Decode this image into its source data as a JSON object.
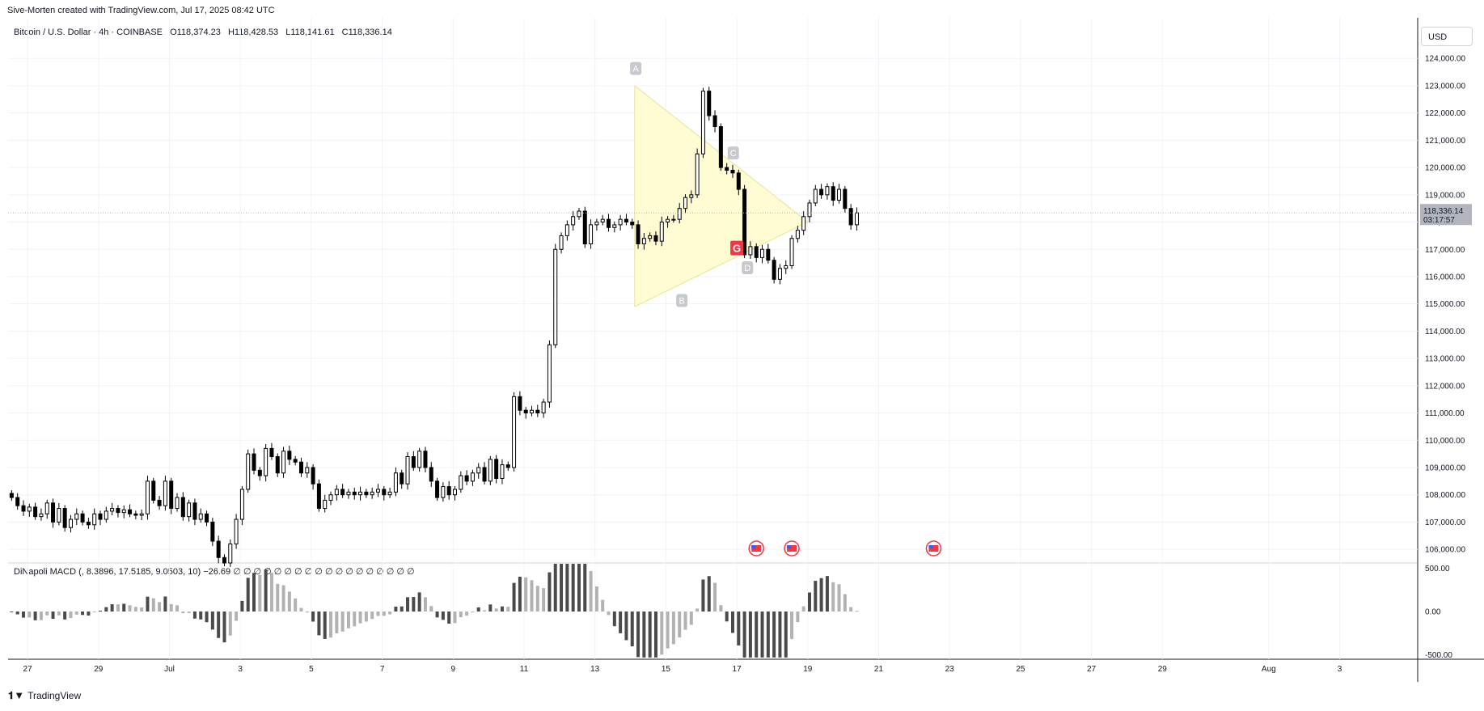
{
  "header": {
    "credit": "Sive-Morten created with TradingView.com, Jul 17, 2025 08:42 UTC"
  },
  "legend": {
    "symbol": "Bitcoin / U.S. Dollar · 4h · COINBASE",
    "open_label": "O",
    "open": "118,374.23",
    "high_label": "H",
    "high": "118,428.53",
    "low_label": "L",
    "low": "118,141.61",
    "close_label": "C",
    "close": "118,336.14"
  },
  "macd_legend": "DiNapoli MACD (, 8.3896, 17.5185, 9.0503, 10)  −26.69  ∅  ∅  ∅  ∅  ∅  ∅  ∅  ∅  ∅  ∅  ∅  ∅  ∅  ∅  ∅  ∅  ∅  ∅",
  "currency": "USD",
  "last_price_label": "118,336.14",
  "countdown": "03:17:57",
  "brand": "TradingView",
  "colors": {
    "up": "#ffffff",
    "down": "#000000",
    "macd_dark": "#4a4a4a",
    "macd_light": "#b2b2b2",
    "triangle": "#fffccc",
    "pattern_label": "#c7c9cf",
    "g_marker": "#f23645"
  },
  "chart_data": {
    "type": "candlestick",
    "timeframe": "4h",
    "price_axis": {
      "ylim": [
        105500,
        124600
      ],
      "ticks": [
        "124,000.00",
        "123,000.00",
        "122,000.00",
        "121,000.00",
        "120,000.00",
        "119,000.00",
        "118,000.00",
        "117,000.00",
        "116,000.00",
        "115,000.00",
        "114,000.00",
        "113,000.00",
        "112,000.00",
        "111,000.00",
        "110,000.00",
        "109,000.00",
        "108,000.00",
        "107,000.00",
        "106,000.00"
      ]
    },
    "time_axis": {
      "ticks": [
        {
          "label": "27",
          "day": 27
        },
        {
          "label": "29",
          "day": 29
        },
        {
          "label": "Jul",
          "day": 31
        },
        {
          "label": "3",
          "day": 33
        },
        {
          "label": "5",
          "day": 35
        },
        {
          "label": "7",
          "day": 37
        },
        {
          "label": "9",
          "day": 39
        },
        {
          "label": "11",
          "day": 41
        },
        {
          "label": "13",
          "day": 43
        },
        {
          "label": "15",
          "day": 45
        },
        {
          "label": "17",
          "day": 47
        },
        {
          "label": "19",
          "day": 49
        },
        {
          "label": "21",
          "day": 51
        },
        {
          "label": "23",
          "day": 53
        },
        {
          "label": "25",
          "day": 55
        },
        {
          "label": "27",
          "day": 57
        },
        {
          "label": "29",
          "day": 59
        },
        {
          "label": "Aug",
          "day": 62
        },
        {
          "label": "3",
          "day": 64
        }
      ],
      "xlim": [
        26.45,
        66.2
      ]
    },
    "candles_close": [
      107900,
      107600,
      107400,
      107550,
      107200,
      107300,
      107700,
      107000,
      107500,
      106800,
      107100,
      107300,
      107000,
      106900,
      107300,
      107100,
      107400,
      107500,
      107350,
      107450,
      107300,
      107250,
      107300,
      108500,
      107800,
      107600,
      108500,
      107500,
      107900,
      107200,
      107700,
      107100,
      107300,
      107000,
      106300,
      105700,
      105500,
      106200,
      107100,
      108200,
      109500,
      108900,
      108700,
      109700,
      109400,
      108800,
      109600,
      109300,
      109200,
      108800,
      109000,
      108400,
      107500,
      107800,
      108000,
      108200,
      108000,
      108100,
      108000,
      108100,
      108000,
      108100,
      108200,
      108000,
      108100,
      108800,
      108400,
      109400,
      109000,
      109600,
      109000,
      108500,
      107900,
      108300,
      108000,
      108200,
      108700,
      108500,
      108800,
      109000,
      108500,
      109300,
      108600,
      109100,
      109000,
      111600,
      111100,
      111000,
      111100,
      111000,
      111400,
      113500,
      117000,
      117500,
      117900,
      118200,
      118400,
      117200,
      117900,
      118000,
      118100,
      117800,
      117900,
      118100,
      118000,
      117900,
      117200,
      117400,
      117500,
      117300,
      118000,
      118100,
      118100,
      118500,
      118900,
      119000,
      120500,
      122800,
      121900,
      121500,
      120000,
      119900,
      119800,
      119200,
      116800,
      117100,
      116700,
      117000,
      116600,
      115900,
      116300,
      116400,
      117400,
      117700,
      118200,
      118700,
      119200,
      119000,
      119300,
      118800,
      119200,
      118500,
      117900,
      118336
    ],
    "pattern_points": [
      {
        "label": "A",
        "price": 123100
      },
      {
        "label": "B",
        "price": 115600
      },
      {
        "label": "C",
        "price": 120000
      },
      {
        "label": "D",
        "price": 116800
      }
    ],
    "macd": {
      "ylim": [
        -550,
        550
      ],
      "ticks": [
        "500.00",
        "0.00",
        "-500.00"
      ]
    }
  }
}
